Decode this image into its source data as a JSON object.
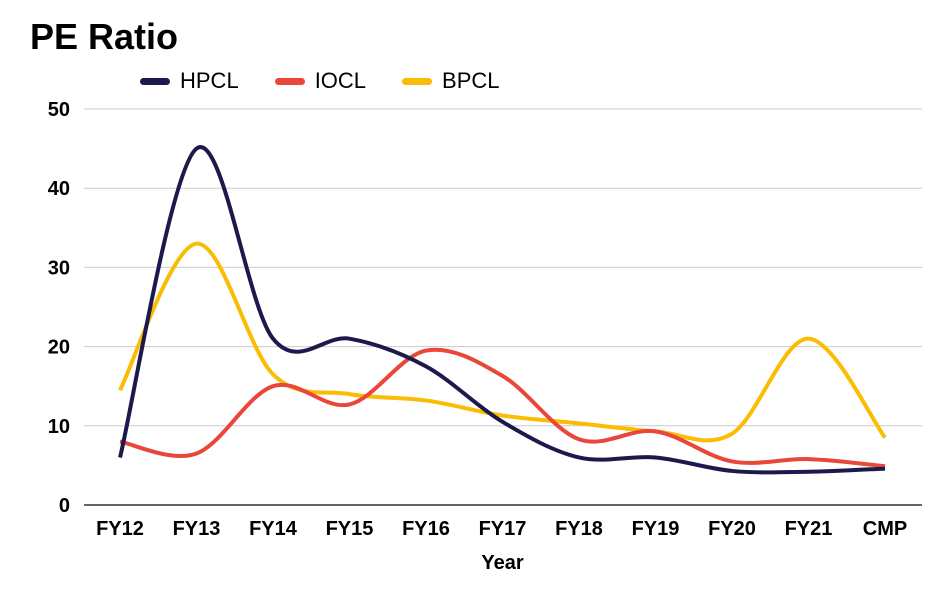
{
  "chart_data": {
    "type": "line",
    "title": "PE Ratio",
    "xlabel": "Year",
    "ylabel": "",
    "categories": [
      "FY12",
      "FY13",
      "FY14",
      "FY15",
      "FY16",
      "FY17",
      "FY18",
      "FY19",
      "FY20",
      "FY21",
      "CMP"
    ],
    "ylim": [
      0,
      50
    ],
    "yticks": [
      0,
      10,
      20,
      30,
      40,
      50
    ],
    "grid": true,
    "legend_position": "top",
    "series": [
      {
        "name": "HPCL",
        "color": "#1c1a4d",
        "values": [
          6,
          45,
          21,
          21,
          17.5,
          10.5,
          6,
          6,
          4.3,
          4.2,
          4.6
        ]
      },
      {
        "name": "IOCL",
        "color": "#e8473a",
        "values": [
          8,
          6.5,
          15,
          12.7,
          19.5,
          16.3,
          8.3,
          9.3,
          5.5,
          5.8,
          4.9
        ]
      },
      {
        "name": "BPCL",
        "color": "#fbbc04",
        "values": [
          14.5,
          33,
          16.5,
          14,
          13.2,
          11.3,
          10.3,
          9.3,
          9,
          21,
          8.5
        ]
      }
    ]
  }
}
